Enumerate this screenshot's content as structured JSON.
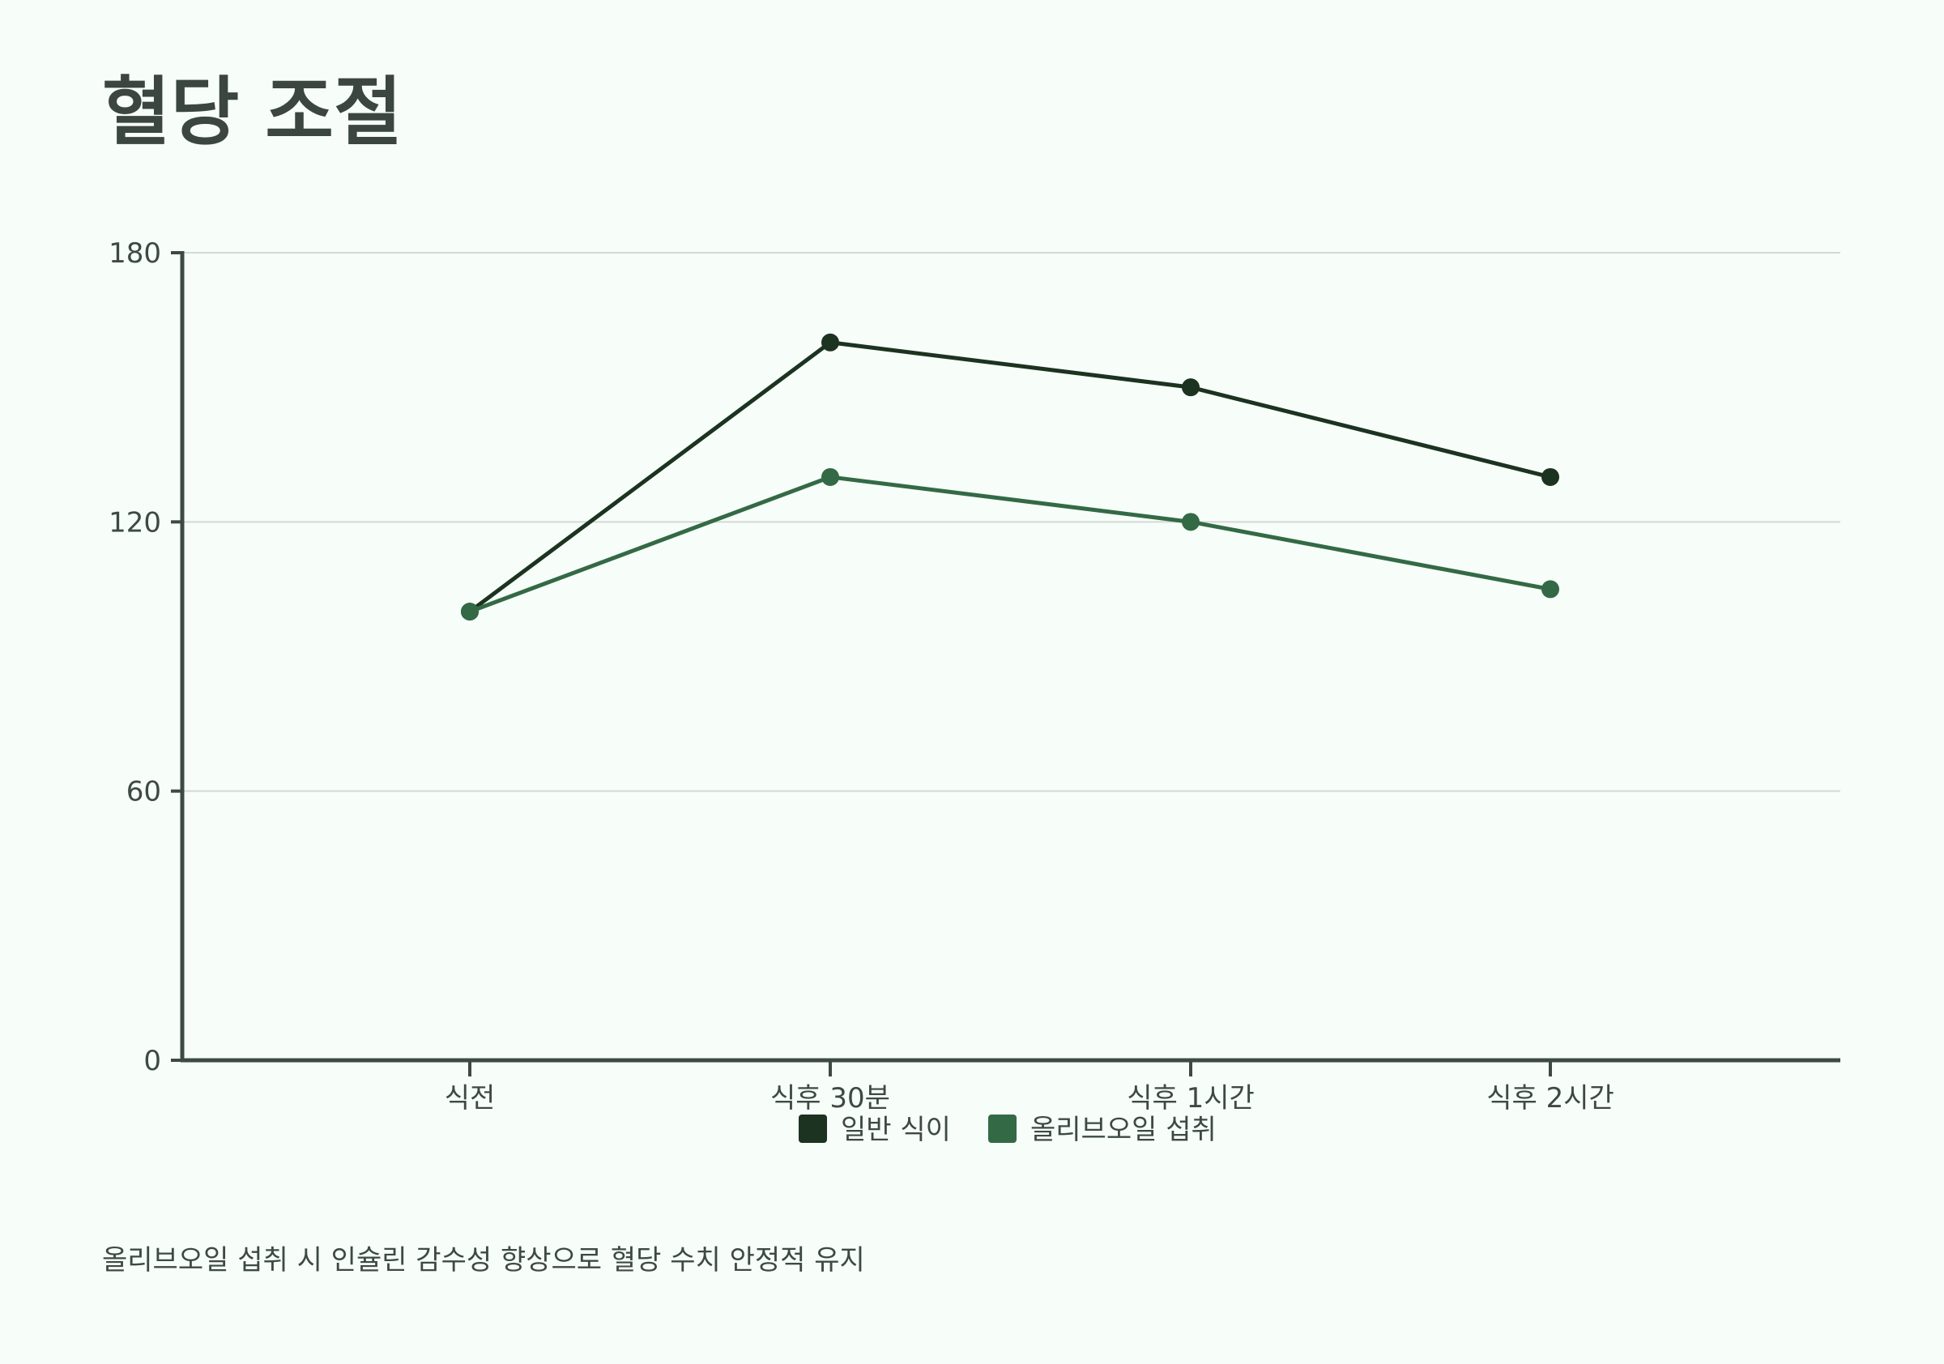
{
  "page": {
    "title": "혈당 조절",
    "caption": "올리브오일 섭취 시 인슐린 감수성 향상으로 혈당 수치 안정적 유지"
  },
  "chart_data": {
    "type": "line",
    "title": "혈당 조절",
    "categories": [
      "식전",
      "식후 30분",
      "식후 1시간",
      "식후 2시간"
    ],
    "series": [
      {
        "name": "일반 식이",
        "values": [
          100,
          160,
          150,
          130
        ],
        "color": "#1b3320"
      },
      {
        "name": "올리브오일 섭취",
        "values": [
          100,
          130,
          120,
          105
        ],
        "color": "#336a45"
      }
    ],
    "xlabel": "",
    "ylabel": "",
    "ylim": [
      0,
      180
    ],
    "yticks": [
      0,
      60,
      120,
      180
    ],
    "grid": true,
    "legend": "bottom-center",
    "colors": {
      "axis": "#3d4a43",
      "grid": "#d3d9d5",
      "background": "#f7fdf8"
    }
  }
}
